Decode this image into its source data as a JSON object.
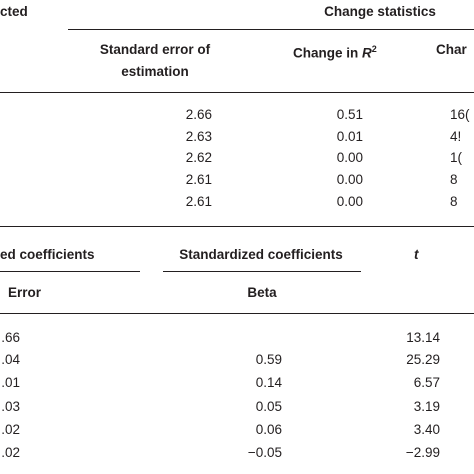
{
  "top_table": {
    "header": {
      "left_cut": "cted",
      "group": "Change statistics",
      "columns": {
        "std_error": [
          "Standard error of",
          "estimation"
        ],
        "change_in_r2": {
          "text": "Change in",
          "symbol": "R",
          "superscript": "2"
        },
        "right_cut": "Char"
      }
    },
    "rows": [
      [
        "2.66",
        "0.51",
        "16("
      ],
      [
        "2.63",
        "0.01",
        "4!"
      ],
      [
        "2.62",
        "0.00",
        "1("
      ],
      [
        "2.61",
        "0.00",
        "8"
      ],
      [
        "2.61",
        "0.00",
        "8"
      ]
    ]
  },
  "bottom_table": {
    "header": {
      "left_group": "ed coefficients",
      "std_group": "Standardized coefficients",
      "t": "t",
      "left_sub": "Error",
      "std_sub": "Beta"
    },
    "rows": [
      [
        ".66",
        null,
        "13.14"
      ],
      [
        ".04",
        "0.59",
        "25.29"
      ],
      [
        ".01",
        "0.14",
        "6.57"
      ],
      [
        ".03",
        "0.05",
        "3.19"
      ],
      [
        ".02",
        "0.06",
        "3.40"
      ],
      [
        ".02",
        "−0.05",
        "−2.99"
      ]
    ]
  }
}
